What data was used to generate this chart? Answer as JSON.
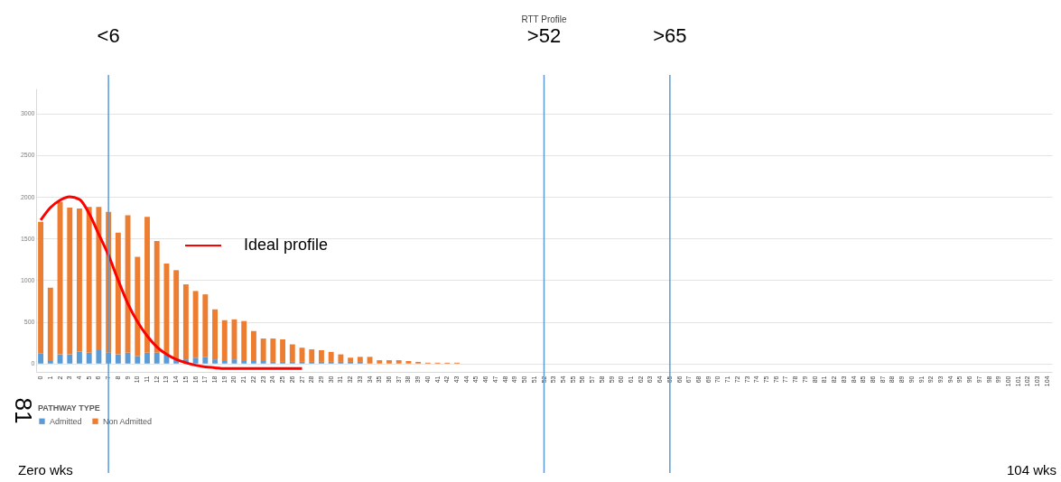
{
  "chart_data": {
    "type": "bar",
    "title": "RTT Profile",
    "legend_title": "PATHWAY TYPE",
    "categories": [
      "0",
      "1",
      "2",
      "3",
      "4",
      "5",
      "6",
      "7",
      "8",
      "9",
      "10",
      "11",
      "12",
      "13",
      "14",
      "15",
      "16",
      "17",
      "18",
      "19",
      "20",
      "21",
      "22",
      "23",
      "24",
      "25",
      "26",
      "27",
      "28",
      "29",
      "30",
      "31",
      "32",
      "33",
      "34",
      "35",
      "36",
      "37",
      "38",
      "39",
      "40",
      "41",
      "42",
      "43",
      "44",
      "45",
      "46",
      "47",
      "48",
      "49",
      "50",
      "51",
      "52",
      "53",
      "54",
      "55",
      "56",
      "57",
      "58",
      "59",
      "60",
      "61",
      "62",
      "63",
      "64",
      "65",
      "66",
      "67",
      "68",
      "69",
      "70",
      "71",
      "72",
      "73",
      "74",
      "75",
      "76",
      "77",
      "78",
      "79",
      "80",
      "81",
      "82",
      "83",
      "84",
      "85",
      "86",
      "87",
      "88",
      "89",
      "90",
      "91",
      "92",
      "93",
      "94",
      "95",
      "96",
      "97",
      "98",
      "99",
      "100",
      "101",
      "102",
      "103",
      "104"
    ],
    "series": [
      {
        "name": "Admitted",
        "color": "#5b9bd5",
        "values": [
          120,
          30,
          110,
          110,
          140,
          130,
          170,
          130,
          110,
          130,
          90,
          130,
          130,
          110,
          60,
          50,
          70,
          80,
          50,
          30,
          50,
          30,
          30,
          30,
          20,
          20,
          20,
          20,
          20,
          20,
          20,
          20,
          20,
          20,
          0,
          0,
          0,
          0,
          0,
          0,
          0,
          0,
          0,
          0,
          0,
          0,
          0,
          0,
          0,
          0,
          0,
          0,
          0,
          0,
          0,
          0,
          0,
          0,
          0,
          0,
          0,
          0,
          0,
          0,
          0,
          0,
          0,
          0,
          0,
          0,
          0,
          0,
          0,
          0,
          0,
          0,
          0,
          0,
          0,
          0,
          0,
          0,
          0,
          0,
          0,
          0,
          0,
          0,
          0,
          0,
          0,
          0,
          0,
          0,
          0,
          0,
          0,
          0,
          0,
          0,
          0,
          0,
          0,
          0,
          0
        ]
      },
      {
        "name": "Non Admitted",
        "color": "#ed7d31",
        "values": [
          1580,
          880,
          1830,
          1760,
          1720,
          1750,
          1710,
          1690,
          1460,
          1650,
          1190,
          1630,
          1340,
          1090,
          1060,
          900,
          800,
          750,
          600,
          490,
          480,
          480,
          360,
          270,
          280,
          270,
          210,
          170,
          150,
          140,
          120,
          90,
          50,
          60,
          80,
          40,
          40,
          40,
          30,
          20,
          10,
          10,
          10,
          10,
          0,
          0,
          0,
          0,
          0,
          0,
          0,
          0,
          0,
          0,
          0,
          0,
          0,
          0,
          0,
          0,
          0,
          0,
          0,
          0,
          0,
          0,
          0,
          0,
          0,
          0,
          0,
          0,
          0,
          0,
          0,
          0,
          0,
          0,
          0,
          0,
          0,
          0,
          0,
          0,
          0,
          0,
          0,
          0,
          0,
          0,
          0,
          0,
          0,
          0,
          0,
          0,
          0,
          0,
          0,
          0,
          0,
          0,
          0,
          0,
          0
        ]
      },
      {
        "name": "Ideal profile",
        "type": "line",
        "color": "#ff0000",
        "values": [
          1720,
          1870,
          1960,
          2000,
          1970,
          1800,
          1550,
          1300,
          1000,
          720,
          500,
          330,
          200,
          110,
          50,
          10,
          -20,
          -40,
          -50,
          -60,
          -60,
          -60,
          -60,
          -60,
          -60,
          -60,
          -60,
          -60,
          null,
          null,
          null,
          null,
          null,
          null,
          null,
          null,
          null,
          null,
          null,
          null,
          null,
          null,
          null,
          null,
          null,
          null,
          null,
          null,
          null,
          null,
          null,
          null,
          null,
          null,
          null,
          null,
          null,
          null,
          null,
          null,
          null,
          null,
          null,
          null,
          null,
          null,
          null,
          null,
          null,
          null,
          null,
          null,
          null,
          null,
          null,
          null,
          null,
          null,
          null,
          null,
          null,
          null,
          null,
          null,
          null,
          null,
          null,
          null,
          null,
          null,
          null,
          null,
          null,
          null,
          null,
          null,
          null,
          null,
          null,
          null,
          null,
          null,
          null,
          null,
          null
        ]
      }
    ],
    "stacked": true,
    "ylim": [
      -100,
      3300
    ],
    "yticks": [
      0,
      500,
      1000,
      1500,
      2000,
      2500,
      3000
    ],
    "grid": "y",
    "legend": "bottom",
    "ref_lines": [
      {
        "axis": "x",
        "value": "7",
        "label": "<6",
        "color": "#5b9bd5"
      },
      {
        "axis": "x",
        "value": "52",
        "label": ">52",
        "color": "#5b9bd5"
      },
      {
        "axis": "x",
        "value": "65",
        "label": ">65",
        "color": "#5b9bd5"
      }
    ],
    "annotations": [
      "Zero wks",
      "104 wks",
      "81"
    ]
  }
}
